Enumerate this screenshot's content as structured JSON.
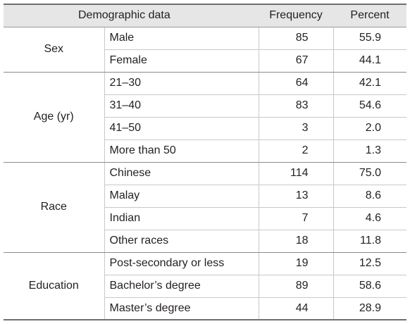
{
  "headers": {
    "demographic": "Demographic data",
    "frequency": "Frequency",
    "percent": "Percent"
  },
  "groups": [
    {
      "label": "Sex",
      "rows": [
        {
          "category": "Male",
          "frequency": "85",
          "percent": "55.9"
        },
        {
          "category": "Female",
          "frequency": "67",
          "percent": "44.1"
        }
      ]
    },
    {
      "label": "Age (yr)",
      "rows": [
        {
          "category": "21–30",
          "frequency": "64",
          "percent": "42.1"
        },
        {
          "category": "31–40",
          "frequency": "83",
          "percent": "54.6"
        },
        {
          "category": "41–50",
          "frequency": "3",
          "percent": "2.0"
        },
        {
          "category": "More than 50",
          "frequency": "2",
          "percent": "1.3"
        }
      ]
    },
    {
      "label": "Race",
      "rows": [
        {
          "category": "Chinese",
          "frequency": "114",
          "percent": "75.0"
        },
        {
          "category": "Malay",
          "frequency": "13",
          "percent": "8.6"
        },
        {
          "category": "Indian",
          "frequency": "7",
          "percent": "4.6"
        },
        {
          "category": "Other races",
          "frequency": "18",
          "percent": "11.8"
        }
      ]
    },
    {
      "label": "Education",
      "rows": [
        {
          "category": "Post-secondary or less",
          "frequency": "19",
          "percent": "12.5"
        },
        {
          "category": "Bachelor’s degree",
          "frequency": "89",
          "percent": "58.6"
        },
        {
          "category": "Master’s degree",
          "frequency": "44",
          "percent": "28.9"
        }
      ]
    }
  ]
}
